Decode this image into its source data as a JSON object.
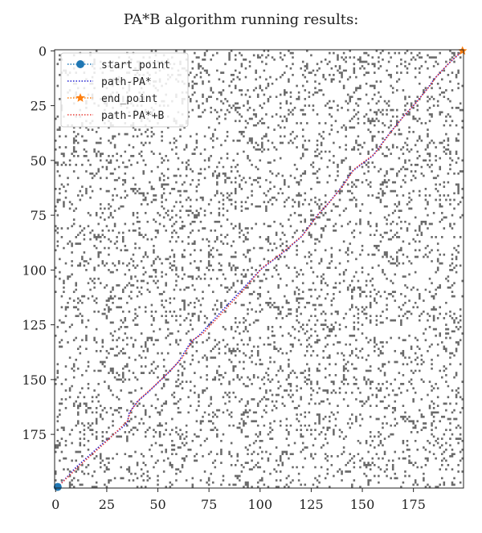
{
  "chart_data": {
    "type": "scatter",
    "title": "PA*B algorithm running results:",
    "grid_size": 200,
    "obstacle_density": 0.12,
    "obstacle_color": "#6b6b6b",
    "x_axis": {
      "range": [
        0,
        199
      ],
      "ticks": [
        0,
        25,
        50,
        75,
        100,
        125,
        150,
        175
      ]
    },
    "y_axis": {
      "range": [
        0,
        199
      ],
      "inverted": true,
      "ticks": [
        0,
        25,
        50,
        75,
        100,
        125,
        150,
        175
      ]
    },
    "legend_position": "top-left",
    "series": [
      {
        "name": "start_point",
        "marker": "circle",
        "color": "#1f77b4",
        "points": [
          [
            1,
            199
          ]
        ]
      },
      {
        "name": "path-PA*",
        "style": "dotted",
        "color": "#1f1fd0",
        "points": [
          [
            1,
            199
          ],
          [
            10,
            190
          ],
          [
            22,
            180
          ],
          [
            35,
            170
          ],
          [
            36,
            165
          ],
          [
            40,
            160
          ],
          [
            45,
            156
          ],
          [
            55,
            147
          ],
          [
            60,
            142
          ],
          [
            66,
            133
          ],
          [
            70,
            130
          ],
          [
            80,
            120
          ],
          [
            90,
            110
          ],
          [
            100,
            100
          ],
          [
            110,
            93
          ],
          [
            120,
            85
          ],
          [
            128,
            75
          ],
          [
            133,
            70
          ],
          [
            140,
            62
          ],
          [
            145,
            55
          ],
          [
            155,
            48
          ],
          [
            163,
            38
          ],
          [
            170,
            30
          ],
          [
            175,
            25
          ],
          [
            182,
            17
          ],
          [
            185,
            13
          ],
          [
            192,
            6
          ],
          [
            199,
            0
          ]
        ]
      },
      {
        "name": "end_point",
        "marker": "star",
        "color": "#ff7f0e",
        "points": [
          [
            199,
            0
          ]
        ]
      },
      {
        "name": "path-PA*+B",
        "style": "dotted",
        "color": "#e8403a",
        "points": [
          [
            1,
            199
          ],
          [
            12,
            189
          ],
          [
            24,
            179
          ],
          [
            35,
            169
          ],
          [
            37,
            164
          ],
          [
            41,
            159
          ],
          [
            47,
            154
          ],
          [
            56,
            146
          ],
          [
            62,
            140
          ],
          [
            67,
            132
          ],
          [
            72,
            129
          ],
          [
            82,
            119
          ],
          [
            92,
            109
          ],
          [
            101,
            99
          ],
          [
            111,
            92
          ],
          [
            121,
            84
          ],
          [
            129,
            74
          ],
          [
            134,
            69
          ],
          [
            141,
            61
          ],
          [
            146,
            54
          ],
          [
            156,
            47
          ],
          [
            164,
            37
          ],
          [
            171,
            29
          ],
          [
            176,
            24
          ],
          [
            183,
            16
          ],
          [
            186,
            12
          ],
          [
            193,
            5
          ],
          [
            199,
            0
          ]
        ]
      }
    ]
  }
}
